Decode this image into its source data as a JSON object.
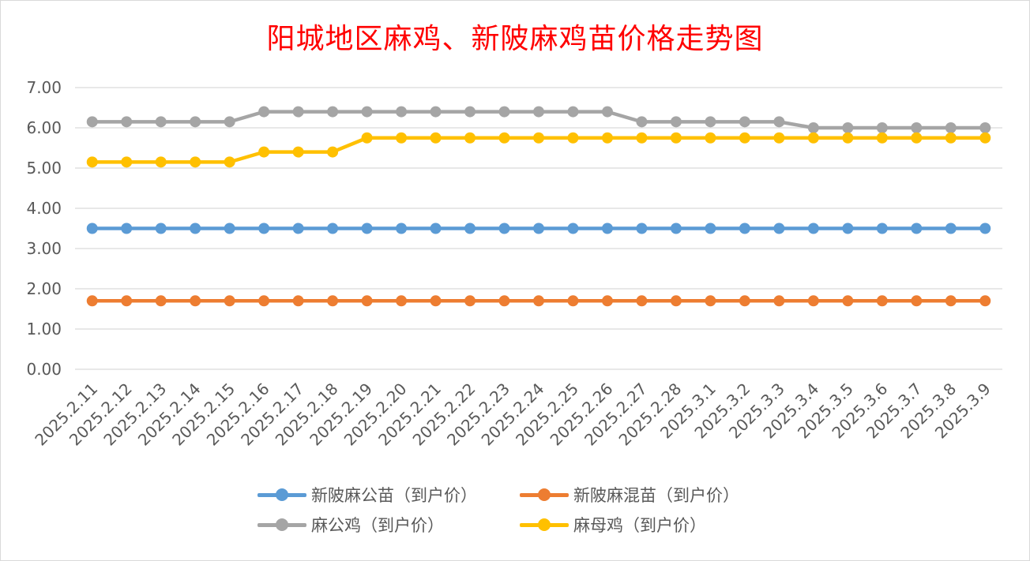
{
  "chart_data": {
    "type": "line",
    "title": "阳城地区麻鸡、新陂麻鸡苗价格走势图",
    "categories": [
      "2025.2.11",
      "2025.2.12",
      "2025.2.13",
      "2025.2.14",
      "2025.2.15",
      "2025.2.16",
      "2025.2.17",
      "2025.2.18",
      "2025.2.19",
      "2025.2.20",
      "2025.2.21",
      "2025.2.22",
      "2025.2.23",
      "2025.2.24",
      "2025.2.25",
      "2025.2.26",
      "2025.2.27",
      "2025.2.28",
      "2025.3.1",
      "2025.3.2",
      "2025.3.3",
      "2025.3.4",
      "2025.3.5",
      "2025.3.6",
      "2025.3.7",
      "2025.3.8",
      "2025.3.9"
    ],
    "yticks": [
      "0.00",
      "1.00",
      "2.00",
      "3.00",
      "4.00",
      "5.00",
      "6.00",
      "7.00"
    ],
    "ylim": [
      0,
      7
    ],
    "grid": true,
    "legend_position": "bottom",
    "series": [
      {
        "name": "新陂麻公苗（到户价）",
        "color": "#5b9bd5",
        "values": [
          3.5,
          3.5,
          3.5,
          3.5,
          3.5,
          3.5,
          3.5,
          3.5,
          3.5,
          3.5,
          3.5,
          3.5,
          3.5,
          3.5,
          3.5,
          3.5,
          3.5,
          3.5,
          3.5,
          3.5,
          3.5,
          3.5,
          3.5,
          3.5,
          3.5,
          3.5,
          3.5
        ]
      },
      {
        "name": "新陂麻混苗（到户价）",
        "color": "#ed7d31",
        "values": [
          1.7,
          1.7,
          1.7,
          1.7,
          1.7,
          1.7,
          1.7,
          1.7,
          1.7,
          1.7,
          1.7,
          1.7,
          1.7,
          1.7,
          1.7,
          1.7,
          1.7,
          1.7,
          1.7,
          1.7,
          1.7,
          1.7,
          1.7,
          1.7,
          1.7,
          1.7,
          1.7
        ]
      },
      {
        "name": "麻公鸡（到户价）",
        "color": "#a5a5a5",
        "values": [
          6.15,
          6.15,
          6.15,
          6.15,
          6.15,
          6.4,
          6.4,
          6.4,
          6.4,
          6.4,
          6.4,
          6.4,
          6.4,
          6.4,
          6.4,
          6.4,
          6.15,
          6.15,
          6.15,
          6.15,
          6.15,
          6.0,
          6.0,
          6.0,
          6.0,
          6.0,
          6.0
        ]
      },
      {
        "name": "麻母鸡（到户价）",
        "color": "#ffc000",
        "values": [
          5.15,
          5.15,
          5.15,
          5.15,
          5.15,
          5.4,
          5.4,
          5.4,
          5.75,
          5.75,
          5.75,
          5.75,
          5.75,
          5.75,
          5.75,
          5.75,
          5.75,
          5.75,
          5.75,
          5.75,
          5.75,
          5.75,
          5.75,
          5.75,
          5.75,
          5.75,
          5.75
        ]
      }
    ]
  }
}
